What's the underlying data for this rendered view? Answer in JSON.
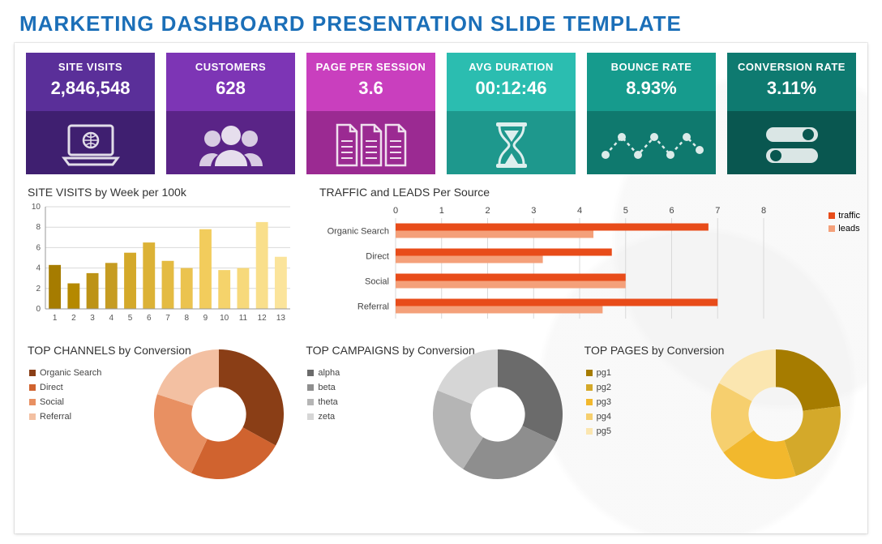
{
  "title": "MARKETING DASHBOARD PRESENTATION SLIDE TEMPLATE",
  "title_color": "#1b6fb8",
  "kpi": [
    {
      "label": "SITE VISITS",
      "value": "2,846,548",
      "bg_top": "#5a2f99",
      "bg_bot": "#3f1f70",
      "icon": "laptop"
    },
    {
      "label": "CUSTOMERS",
      "value": "628",
      "bg_top": "#7d35b5",
      "bg_bot": "#5a2487",
      "icon": "users"
    },
    {
      "label": "PAGE PER SESSION",
      "value": "3.6",
      "bg_top": "#c93fbe",
      "bg_bot": "#9b2a92",
      "icon": "docs"
    },
    {
      "label": "AVG DURATION",
      "value": "00:12:46",
      "bg_top": "#2bbdb0",
      "bg_bot": "#1e988d",
      "icon": "hourglass"
    },
    {
      "label": "BOUNCE RATE",
      "value": "8.93%",
      "bg_top": "#169b8d",
      "bg_bot": "#0f796e",
      "icon": "bounce"
    },
    {
      "label": "CONVERSION RATE",
      "value": "3.11%",
      "bg_top": "#0e7a70",
      "bg_bot": "#095750",
      "icon": "toggles"
    }
  ],
  "site_visits_chart": {
    "title": "SITE VISITS by Week per 100k",
    "type": "bar",
    "categories": [
      "1",
      "2",
      "3",
      "4",
      "5",
      "6",
      "7",
      "8",
      "9",
      "10",
      "11",
      "12",
      "13"
    ],
    "values": [
      4.3,
      2.5,
      3.5,
      4.5,
      5.5,
      6.5,
      4.7,
      4.0,
      7.8,
      3.8,
      4.0,
      8.5,
      5.1
    ],
    "colors": [
      "#a67c00",
      "#b58900",
      "#bd9316",
      "#c69c22",
      "#d4a92a",
      "#dcb236",
      "#e4bb42",
      "#ebc34f",
      "#f2cc5c",
      "#f5d36b",
      "#f7d97b",
      "#f9df8b",
      "#fbe49b"
    ],
    "ylim": [
      0,
      10
    ],
    "ytick_step": 2,
    "axis_color": "#999999",
    "grid_color": "#d9d9d9",
    "label_fontsize": 10,
    "background_color": "#ffffff"
  },
  "traffic_leads_chart": {
    "title": "TRAFFIC and LEADS Per Source",
    "type": "grouped_hbar",
    "categories": [
      "Organic Search",
      "Direct",
      "Social",
      "Referral"
    ],
    "series": [
      {
        "name": "traffic",
        "color": "#e84c1a",
        "values": [
          6.8,
          4.7,
          5.0,
          7.0
        ]
      },
      {
        "name": "leads",
        "color": "#f4a07a",
        "values": [
          4.3,
          3.2,
          5.0,
          4.5
        ]
      }
    ],
    "xlim": [
      0,
      8
    ],
    "xtick_step": 1,
    "grid_color": "#d9d9d9",
    "label_fontsize": 11
  },
  "top_channels": {
    "title": "TOP CHANNELS by Conversion",
    "type": "donut",
    "labels": [
      "Organic Search",
      "Direct",
      "Social",
      "Referral"
    ],
    "values": [
      33,
      24,
      23,
      20
    ],
    "colors": [
      "#8a3e16",
      "#d0632f",
      "#e89062",
      "#f3c0a2"
    ],
    "inner_radius": 0.42
  },
  "top_campaigns": {
    "title": "TOP CAMPAIGNS by Conversion",
    "type": "donut",
    "labels": [
      "alpha",
      "beta",
      "theta",
      "zeta"
    ],
    "values": [
      32,
      27,
      22,
      19
    ],
    "colors": [
      "#6b6b6b",
      "#8e8e8e",
      "#b5b5b5",
      "#d6d6d6"
    ],
    "inner_radius": 0.42
  },
  "top_pages": {
    "title": "TOP PAGES by Conversion",
    "type": "donut",
    "labels": [
      "pg1",
      "pg2",
      "pg3",
      "pg4",
      "pg5"
    ],
    "values": [
      23,
      22,
      20,
      18,
      17
    ],
    "colors": [
      "#a67c00",
      "#d4a92a",
      "#f2b82d",
      "#f6cf6e",
      "#fbe6b0"
    ],
    "inner_radius": 0.42
  }
}
